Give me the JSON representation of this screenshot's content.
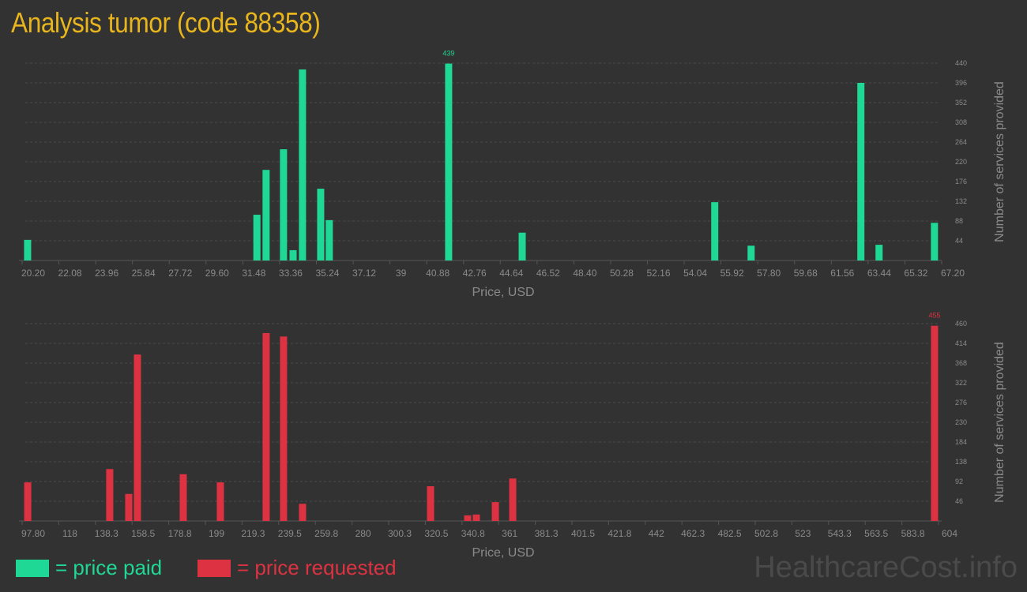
{
  "title": "Analysis tumor (code 88358)",
  "brand": "HealthcareCost.info",
  "legend": {
    "paid": "= price paid",
    "requested": "= price requested"
  },
  "colors": {
    "paid": "#1fd896",
    "requested": "#dc3241",
    "title": "#e8b51c",
    "background": "#323232"
  },
  "chart_data": [
    {
      "type": "bar",
      "xlabel": "Price, USD",
      "ylabel": "Number of services provided",
      "xticks": [
        "20.20",
        "22.08",
        "23.96",
        "25.84",
        "27.72",
        "29.60",
        "31.48",
        "33.36",
        "35.24",
        "37.12",
        "39",
        "40.88",
        "42.76",
        "44.64",
        "46.52",
        "48.40",
        "50.28",
        "52.16",
        "54.04",
        "55.92",
        "57.80",
        "59.68",
        "61.56",
        "63.44",
        "65.32",
        "67.20"
      ],
      "xlim": [
        20.2,
        67.2
      ],
      "yticks": [
        44,
        88,
        132,
        176,
        220,
        264,
        308,
        352,
        396,
        440
      ],
      "ylim": [
        0,
        440
      ],
      "grid": true,
      "max_label": "439",
      "x": [
        20.48,
        32.2,
        32.67,
        33.56,
        34.05,
        34.53,
        35.46,
        35.9,
        42.0,
        45.76,
        55.6,
        57.46,
        63.07,
        64.0,
        66.83
      ],
      "values": [
        46,
        102,
        202,
        248,
        23,
        426,
        160,
        90,
        439,
        62,
        130,
        33,
        396,
        35,
        84
      ]
    },
    {
      "type": "bar",
      "xlabel": "Price, USD",
      "ylabel": "Number of services provided",
      "xticks": [
        "97.80",
        "118",
        "138.3",
        "158.5",
        "178.8",
        "199",
        "219.3",
        "239.5",
        "259.8",
        "280",
        "300.3",
        "320.5",
        "340.8",
        "361",
        "381.3",
        "401.5",
        "421.8",
        "442",
        "462.3",
        "482.5",
        "502.8",
        "523",
        "543.3",
        "563.5",
        "583.8",
        "604"
      ],
      "xlim": [
        97.8,
        604
      ],
      "yticks": [
        46,
        92,
        138,
        184,
        230,
        276,
        322,
        368,
        414,
        460
      ],
      "ylim": [
        0,
        460
      ],
      "grid": true,
      "max_label": "455",
      "x": [
        100.9,
        146.2,
        156.7,
        161.5,
        186.8,
        207.3,
        232.6,
        242.2,
        252.7,
        323.4,
        343.9,
        348.7,
        359.2,
        368.8,
        601.8
      ],
      "values": [
        90,
        121,
        63,
        388,
        109,
        90,
        438,
        430,
        40,
        81,
        13,
        15,
        44,
        99,
        455
      ]
    }
  ]
}
